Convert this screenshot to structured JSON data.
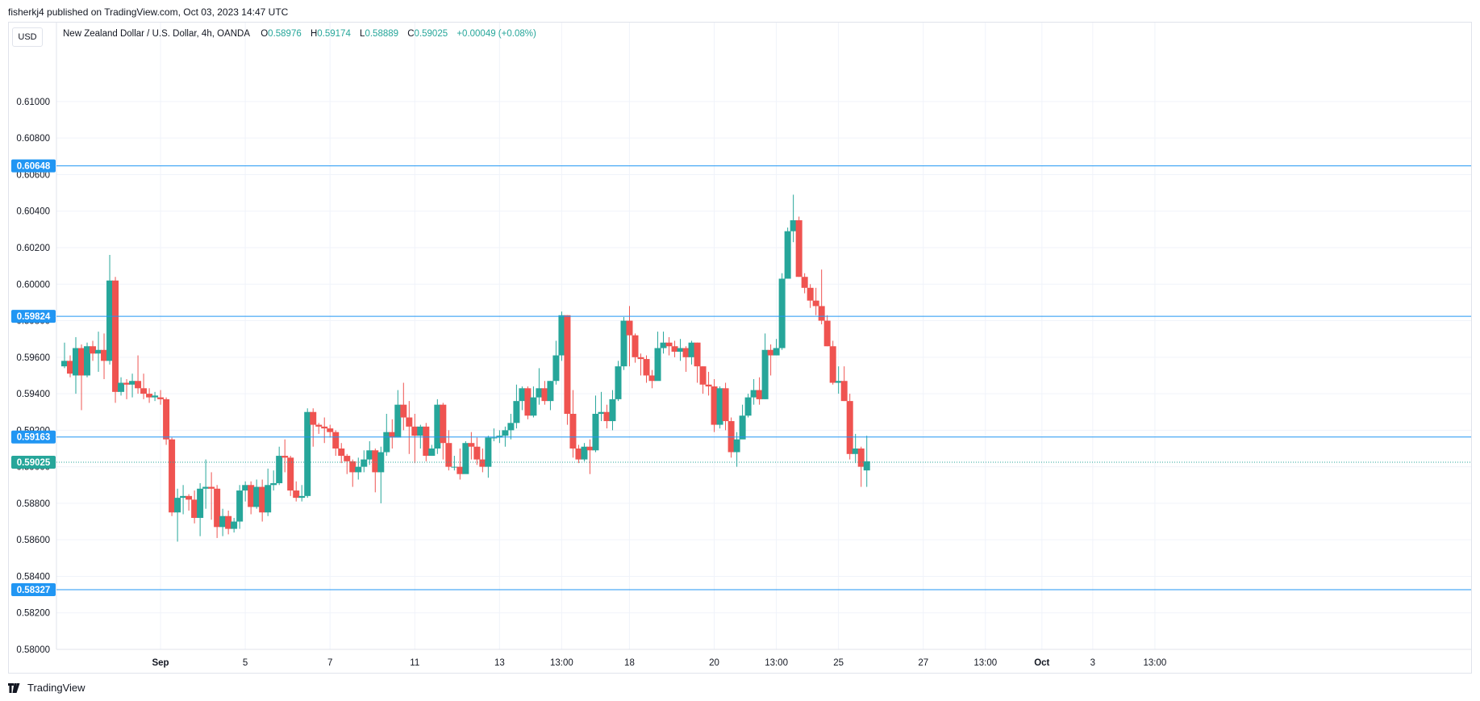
{
  "header": {
    "published": "fisherkj4 published on TradingView.com, Oct 03, 2023 14:47 UTC"
  },
  "toolbar": {
    "unit_button": "USD"
  },
  "legend": {
    "symbol": "New Zealand Dollar / U.S. Dollar, 4h, OANDA",
    "open_label": "O",
    "open": "0.58976",
    "high_label": "H",
    "high": "0.59174",
    "low_label": "L",
    "low": "0.58889",
    "close_label": "C",
    "close": "0.59025",
    "change": "+0.00049 (+0.08%)"
  },
  "footer": {
    "brand": "TradingView",
    "logo_icon": "tradingview-logo-icon"
  },
  "colors": {
    "up": "#26a69a",
    "down": "#ef5350",
    "level_line": "#2196f3",
    "grid": "#f0f3fa",
    "axis_text": "#131722"
  },
  "chart_data": {
    "type": "candlestick",
    "ylim": [
      0.58,
      0.613
    ],
    "y_ticks": [
      "0.61000",
      "0.60800",
      "0.60600",
      "0.60400",
      "0.60200",
      "0.60000",
      "0.59800",
      "0.59600",
      "0.59400",
      "0.59200",
      "0.59000",
      "0.58800",
      "0.58600",
      "0.58400",
      "0.58200",
      "0.58000"
    ],
    "x_ticks": [
      {
        "label": "Sep",
        "index": 8
      },
      {
        "label": "5",
        "index": 23
      },
      {
        "label": "7",
        "index": 38
      },
      {
        "label": "11",
        "index": 53
      },
      {
        "label": "13",
        "index": 68
      },
      {
        "label": "13:00",
        "index": 79
      },
      {
        "label": "18",
        "index": 91
      },
      {
        "label": "20",
        "index": 106
      },
      {
        "label": "13:00",
        "index": 117
      },
      {
        "label": "25",
        "index": 128
      },
      {
        "label": "27",
        "index": 143
      },
      {
        "label": "13:00",
        "index": 154
      },
      {
        "label": "Oct",
        "index": 164
      },
      {
        "label": "3",
        "index": 173
      },
      {
        "label": "13:00",
        "index": 184
      }
    ],
    "horizontal_levels": [
      {
        "value": "0.60648",
        "style": "solid"
      },
      {
        "value": "0.59824",
        "style": "solid"
      },
      {
        "value": "0.59163",
        "style": "solid"
      },
      {
        "value": "0.58327",
        "style": "solid"
      }
    ],
    "last_price": "0.59025",
    "candles": [
      [
        0.5955,
        0.5958,
        0.5954,
        0.5968
      ],
      [
        0.5958,
        0.5951,
        0.5949,
        0.5961
      ],
      [
        0.595,
        0.5965,
        0.594,
        0.5971
      ],
      [
        0.5965,
        0.595,
        0.5931,
        0.5967
      ],
      [
        0.595,
        0.5966,
        0.5949,
        0.5968
      ],
      [
        0.5966,
        0.5962,
        0.5958,
        0.5969
      ],
      [
        0.5962,
        0.5964,
        0.5952,
        0.5974
      ],
      [
        0.5964,
        0.5958,
        0.5948,
        0.5973
      ],
      [
        0.5958,
        0.6002,
        0.5956,
        0.6016
      ],
      [
        0.6002,
        0.5941,
        0.5935,
        0.6004
      ],
      [
        0.5941,
        0.5946,
        0.5939,
        0.5949
      ],
      [
        0.5946,
        0.5945,
        0.5937,
        0.5948
      ],
      [
        0.5945,
        0.5947,
        0.5938,
        0.5951
      ],
      [
        0.5947,
        0.5943,
        0.594,
        0.5961
      ],
      [
        0.5943,
        0.594,
        0.5937,
        0.5951
      ],
      [
        0.594,
        0.5938,
        0.5935,
        0.5943
      ],
      [
        0.5938,
        0.5939,
        0.5936,
        0.5941
      ],
      [
        0.5938,
        0.5937,
        0.5934,
        0.5942
      ],
      [
        0.5937,
        0.5915,
        0.5912,
        0.5938
      ],
      [
        0.5915,
        0.5875,
        0.5873,
        0.5916
      ],
      [
        0.5875,
        0.5883,
        0.5859,
        0.5888
      ],
      [
        0.5883,
        0.5884,
        0.5874,
        0.589
      ],
      [
        0.5884,
        0.5882,
        0.5876,
        0.5885
      ],
      [
        0.5882,
        0.5872,
        0.5869,
        0.5887
      ],
      [
        0.5872,
        0.5888,
        0.5862,
        0.5891
      ],
      [
        0.5888,
        0.5889,
        0.5877,
        0.5904
      ],
      [
        0.5889,
        0.5888,
        0.5871,
        0.5897
      ],
      [
        0.5888,
        0.5867,
        0.5861,
        0.589
      ],
      [
        0.5867,
        0.5873,
        0.5862,
        0.5877
      ],
      [
        0.5873,
        0.5866,
        0.5863,
        0.5876
      ],
      [
        0.5866,
        0.587,
        0.5864,
        0.5872
      ],
      [
        0.587,
        0.5887,
        0.5866,
        0.589
      ],
      [
        0.5887,
        0.589,
        0.5881,
        0.5892
      ],
      [
        0.589,
        0.5878,
        0.5874,
        0.5892
      ],
      [
        0.5878,
        0.5889,
        0.5877,
        0.5893
      ],
      [
        0.5889,
        0.5875,
        0.587,
        0.5893
      ],
      [
        0.5875,
        0.589,
        0.5873,
        0.5899
      ],
      [
        0.589,
        0.5891,
        0.5887,
        0.5898
      ],
      [
        0.5891,
        0.5906,
        0.589,
        0.5911
      ],
      [
        0.5906,
        0.5905,
        0.5897,
        0.5915
      ],
      [
        0.5905,
        0.5887,
        0.5884,
        0.5906
      ],
      [
        0.5887,
        0.5883,
        0.5881,
        0.5892
      ],
      [
        0.5883,
        0.5884,
        0.5881,
        0.589
      ],
      [
        0.5884,
        0.593,
        0.5883,
        0.5932
      ],
      [
        0.593,
        0.5923,
        0.5911,
        0.5932
      ],
      [
        0.5923,
        0.5922,
        0.5918,
        0.5924
      ],
      [
        0.5922,
        0.5921,
        0.5913,
        0.5927
      ],
      [
        0.5921,
        0.5919,
        0.5916,
        0.5923
      ],
      [
        0.5919,
        0.591,
        0.5906,
        0.592
      ],
      [
        0.591,
        0.5906,
        0.5902,
        0.5913
      ],
      [
        0.5906,
        0.5903,
        0.5896,
        0.5907
      ],
      [
        0.5903,
        0.5897,
        0.5889,
        0.5904
      ],
      [
        0.5897,
        0.59,
        0.5893,
        0.5905
      ],
      [
        0.59,
        0.5904,
        0.5897,
        0.5909
      ],
      [
        0.5904,
        0.5909,
        0.5901,
        0.5914
      ],
      [
        0.5909,
        0.5897,
        0.5886,
        0.591
      ],
      [
        0.5897,
        0.5908,
        0.588,
        0.5911
      ],
      [
        0.5908,
        0.5919,
        0.5906,
        0.5929
      ],
      [
        0.5919,
        0.5916,
        0.591,
        0.5926
      ],
      [
        0.5916,
        0.5934,
        0.5916,
        0.5942
      ],
      [
        0.5934,
        0.5927,
        0.592,
        0.5946
      ],
      [
        0.5927,
        0.5922,
        0.5907,
        0.5936
      ],
      [
        0.5922,
        0.5917,
        0.5902,
        0.5929
      ],
      [
        0.5917,
        0.5922,
        0.591,
        0.5923
      ],
      [
        0.5922,
        0.5906,
        0.5903,
        0.5924
      ],
      [
        0.5906,
        0.591,
        0.5906,
        0.5912
      ],
      [
        0.591,
        0.5934,
        0.5907,
        0.5937
      ],
      [
        0.5934,
        0.5913,
        0.5904,
        0.5935
      ],
      [
        0.5913,
        0.59,
        0.5898,
        0.592
      ],
      [
        0.59,
        0.59,
        0.5898,
        0.5906
      ],
      [
        0.59,
        0.5896,
        0.5893,
        0.591
      ],
      [
        0.5896,
        0.5913,
        0.5897,
        0.5914
      ],
      [
        0.5913,
        0.5911,
        0.5904,
        0.5919
      ],
      [
        0.5911,
        0.5904,
        0.5901,
        0.5916
      ],
      [
        0.5904,
        0.59,
        0.5897,
        0.591
      ],
      [
        0.59,
        0.5916,
        0.5894,
        0.5917
      ],
      [
        0.5916,
        0.5916,
        0.5914,
        0.5921
      ],
      [
        0.5916,
        0.5917,
        0.5913,
        0.592
      ],
      [
        0.5917,
        0.592,
        0.5911,
        0.5922
      ],
      [
        0.592,
        0.5924,
        0.5915,
        0.5929
      ],
      [
        0.5924,
        0.5936,
        0.5921,
        0.5945
      ],
      [
        0.5936,
        0.5943,
        0.5931,
        0.5944
      ],
      [
        0.5943,
        0.5928,
        0.5926,
        0.5944
      ],
      [
        0.5928,
        0.5938,
        0.5927,
        0.5944
      ],
      [
        0.5938,
        0.5943,
        0.5934,
        0.5954
      ],
      [
        0.5943,
        0.5936,
        0.5934,
        0.5947
      ],
      [
        0.5936,
        0.5947,
        0.5931,
        0.5947
      ],
      [
        0.5947,
        0.5961,
        0.5945,
        0.5969
      ],
      [
        0.5961,
        0.5983,
        0.5958,
        0.5985
      ],
      [
        0.5983,
        0.5929,
        0.5923,
        0.5983
      ],
      [
        0.5929,
        0.591,
        0.5905,
        0.5942
      ],
      [
        0.591,
        0.5904,
        0.5902,
        0.5912
      ],
      [
        0.5904,
        0.5911,
        0.5903,
        0.5913
      ],
      [
        0.5911,
        0.5909,
        0.5896,
        0.5915
      ],
      [
        0.5909,
        0.5929,
        0.5908,
        0.5939
      ],
      [
        0.5929,
        0.593,
        0.5925,
        0.5941
      ],
      [
        0.593,
        0.5925,
        0.5921,
        0.5934
      ],
      [
        0.5925,
        0.5937,
        0.592,
        0.5942
      ],
      [
        0.5937,
        0.5955,
        0.5936,
        0.5958
      ],
      [
        0.5955,
        0.598,
        0.5953,
        0.5982
      ],
      [
        0.598,
        0.5972,
        0.5955,
        0.5988
      ],
      [
        0.5972,
        0.596,
        0.5957,
        0.5973
      ],
      [
        0.596,
        0.5959,
        0.595,
        0.5962
      ],
      [
        0.5959,
        0.595,
        0.5946,
        0.5961
      ],
      [
        0.595,
        0.5947,
        0.5943,
        0.5953
      ],
      [
        0.5947,
        0.5965,
        0.5948,
        0.5974
      ],
      [
        0.5965,
        0.5968,
        0.5962,
        0.5974
      ],
      [
        0.5968,
        0.5966,
        0.5961,
        0.5971
      ],
      [
        0.5966,
        0.5963,
        0.596,
        0.5969
      ],
      [
        0.5963,
        0.5965,
        0.5958,
        0.597
      ],
      [
        0.5965,
        0.596,
        0.5952,
        0.5966
      ],
      [
        0.596,
        0.5968,
        0.5956,
        0.5969
      ],
      [
        0.5968,
        0.5955,
        0.5946,
        0.5968
      ],
      [
        0.5955,
        0.5945,
        0.594,
        0.5955
      ],
      [
        0.5945,
        0.5944,
        0.5939,
        0.5952
      ],
      [
        0.5944,
        0.5923,
        0.5919,
        0.5948
      ],
      [
        0.5923,
        0.5943,
        0.5921,
        0.5944
      ],
      [
        0.5943,
        0.5925,
        0.592,
        0.5946
      ],
      [
        0.5925,
        0.5908,
        0.5905,
        0.5927
      ],
      [
        0.5908,
        0.5915,
        0.59,
        0.5919
      ],
      [
        0.5915,
        0.5928,
        0.5918,
        0.5934
      ],
      [
        0.5928,
        0.5938,
        0.5927,
        0.594
      ],
      [
        0.5938,
        0.5942,
        0.5934,
        0.5948
      ],
      [
        0.5942,
        0.5937,
        0.5934,
        0.5949
      ],
      [
        0.5937,
        0.5964,
        0.5937,
        0.5973
      ],
      [
        0.5964,
        0.5961,
        0.595,
        0.5967
      ],
      [
        0.5961,
        0.5965,
        0.5961,
        0.597
      ],
      [
        0.5965,
        0.6003,
        0.5964,
        0.6006
      ],
      [
        0.6003,
        0.6029,
        0.6003,
        0.6031
      ],
      [
        0.6029,
        0.6035,
        0.6023,
        0.6049
      ],
      [
        0.6035,
        0.6004,
        0.6004,
        0.6037
      ],
      [
        0.6004,
        0.5998,
        0.5995,
        0.6006
      ],
      [
        0.5998,
        0.5991,
        0.5987,
        0.6
      ],
      [
        0.5991,
        0.5988,
        0.5983,
        0.5998
      ],
      [
        0.5988,
        0.598,
        0.5978,
        0.6008
      ],
      [
        0.598,
        0.5966,
        0.5966,
        0.5983
      ],
      [
        0.5966,
        0.5946,
        0.5945,
        0.5969
      ],
      [
        0.5946,
        0.5947,
        0.594,
        0.5955
      ],
      [
        0.5947,
        0.5936,
        0.5936,
        0.5955
      ],
      [
        0.5936,
        0.5907,
        0.5904,
        0.594
      ],
      [
        0.5907,
        0.591,
        0.5902,
        0.5918
      ],
      [
        0.591,
        0.59,
        0.5889,
        0.5911
      ],
      [
        0.5898,
        0.5903,
        0.5889,
        0.5917
      ]
    ]
  }
}
